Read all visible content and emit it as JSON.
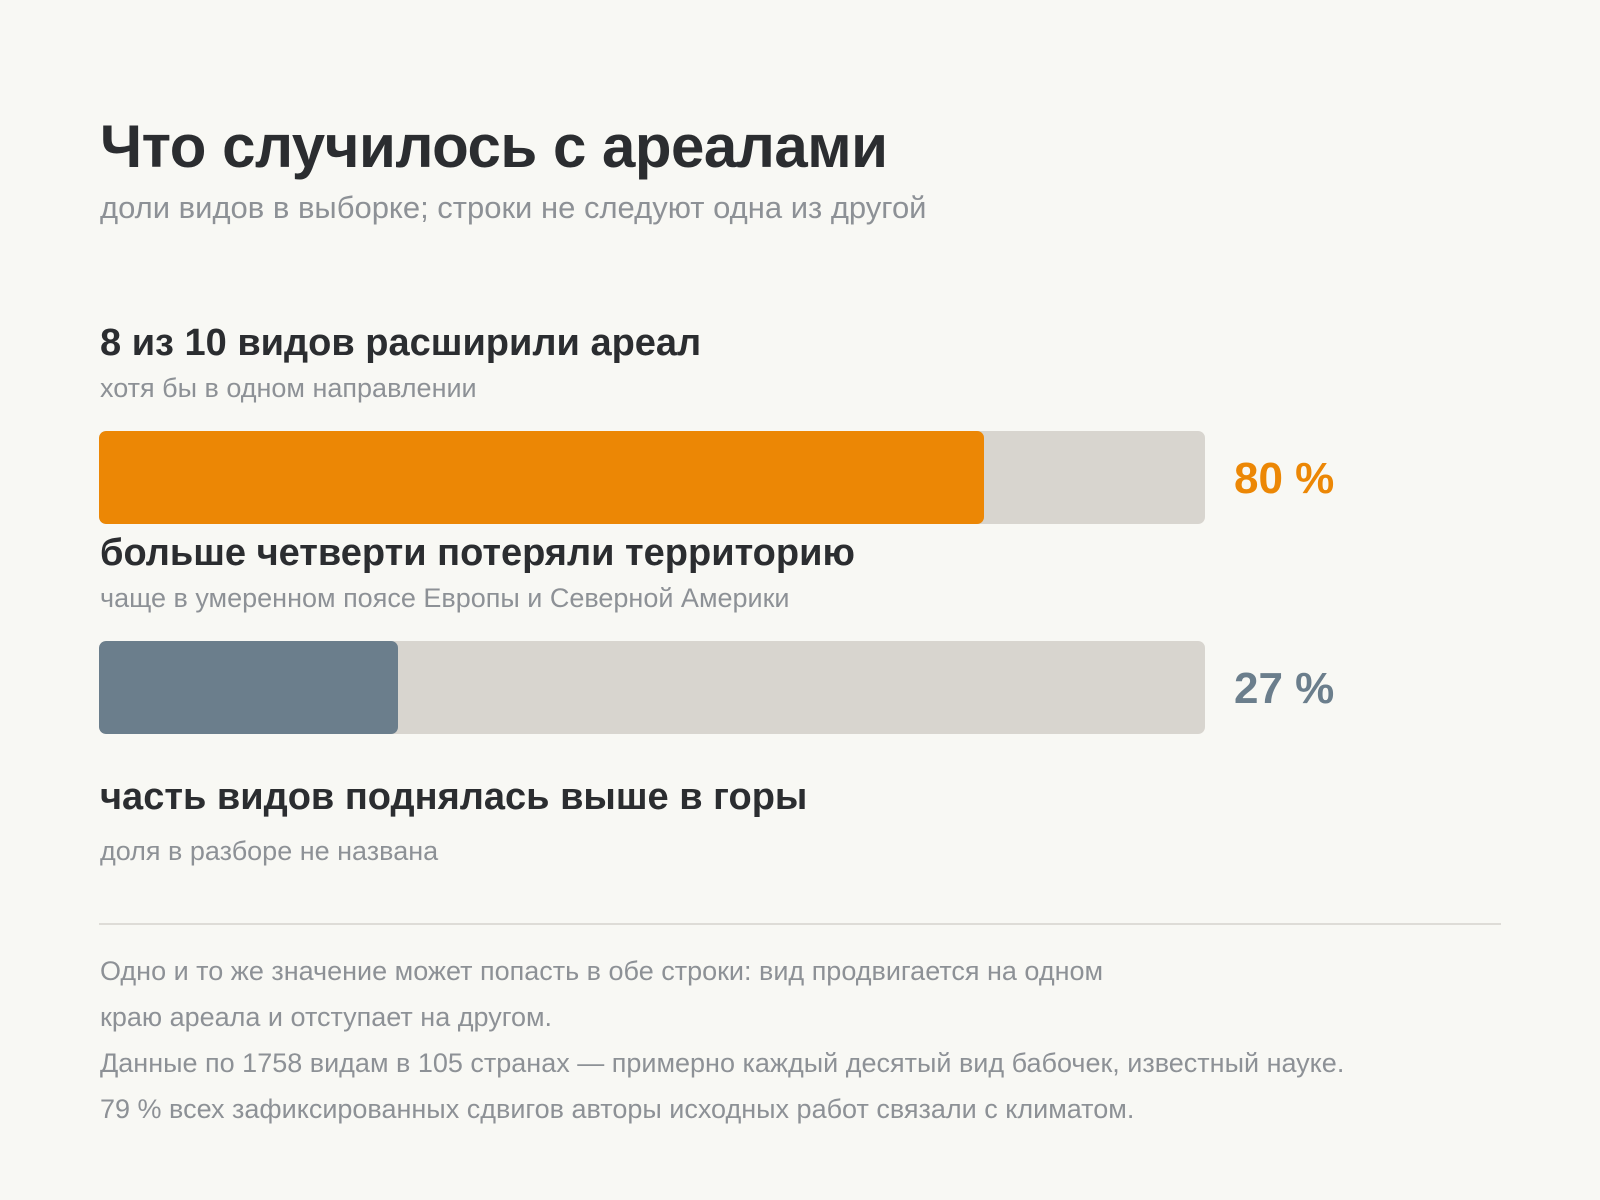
{
  "chart_data": {
    "type": "bar",
    "title": "Что случилось с ареалами",
    "subtitle": "доли видов в выборке; строки не следуют одна из другой",
    "unit": "%",
    "rows": [
      {
        "heading": "8 из 10 видов расширили ареал",
        "note": "хотя бы в одном направлении",
        "value": 80,
        "value_label": "80 %",
        "color": "#ec8705"
      },
      {
        "heading": "больше четверти потеряли территорию",
        "note": "чаще в умеренном поясе Европы и Северной Америки",
        "value": 27,
        "value_label": "27 %",
        "color": "#6b7e8c"
      },
      {
        "heading": "часть видов поднялась выше в горы",
        "note": "доля в разборе не названа",
        "value": null,
        "value_label": ""
      }
    ],
    "xlim": [
      0,
      100
    ],
    "track_color": "#d8d5cf"
  },
  "footnotes": [
    "Одно и то же значение может попасть в обе строки: вид продвигается на одном",
    "краю ареала и отступает на другом.",
    "Данные по 1758 видам в 105 странах — примерно каждый десятый вид бабочек, известный науке.",
    "79 % всех зафиксированных сдвигов авторы исходных работ связали с климатом."
  ]
}
